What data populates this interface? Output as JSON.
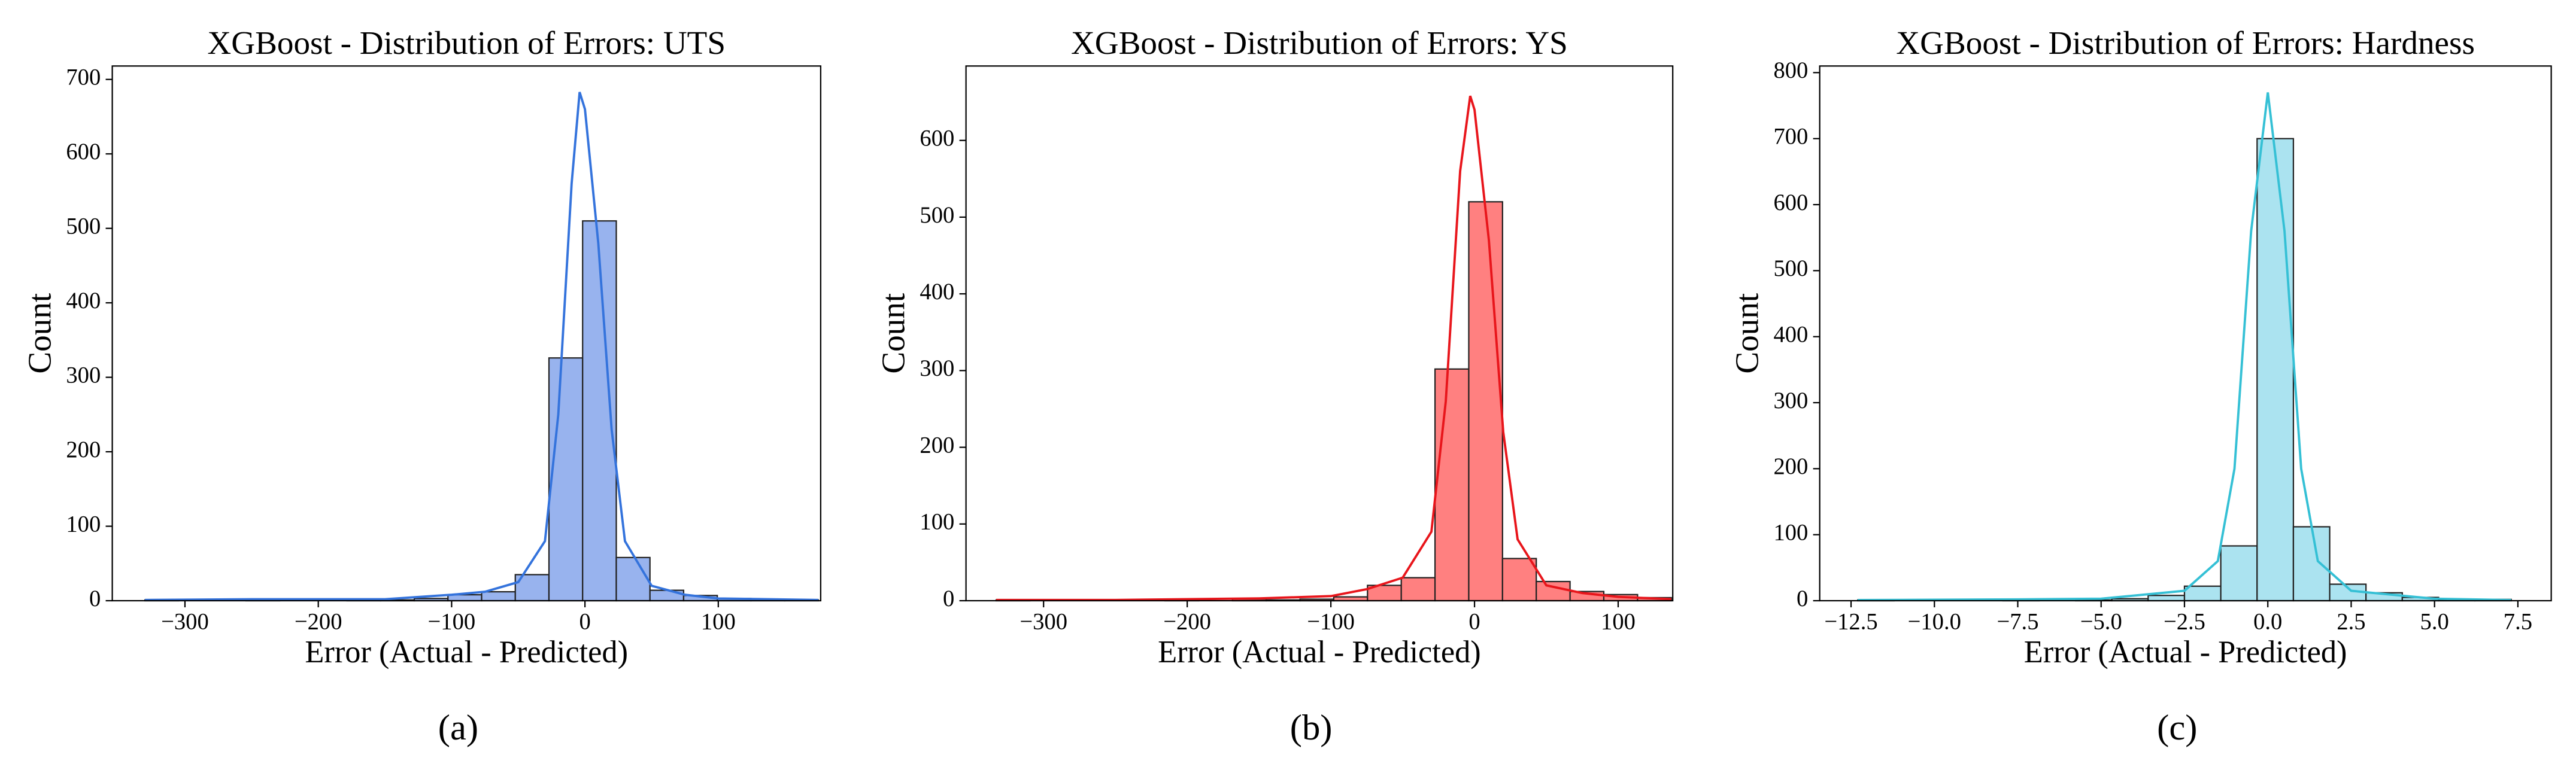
{
  "chart_data": [
    {
      "type": "histogram",
      "title": "XGBoost - Distribution of Errors: UTS",
      "xlabel": "Error (Actual - Predicted)",
      "ylabel": "Count",
      "panel_label": "(a)",
      "color": "#98b3ee",
      "line_color": "#3473dc",
      "bins": [
        -330,
        -304.75,
        -279.5,
        -254.25,
        -229,
        -203.75,
        -178.5,
        -153.25,
        -128,
        -102.75,
        -77.5,
        -52.25,
        -27,
        -1.75,
        23.5,
        48.75,
        74,
        99.25,
        124.5,
        149.75,
        175
      ],
      "values": [
        1,
        0,
        0,
        1,
        0,
        0,
        1,
        1,
        3,
        8,
        12,
        35,
        326,
        510,
        58,
        14,
        7,
        3,
        1,
        1
      ],
      "kde": {
        "x": [
          -330,
          -250,
          -150,
          -100,
          -75,
          -50,
          -30,
          -20,
          -10,
          -4,
          0,
          10,
          20,
          30,
          50,
          75,
          100,
          175
        ],
        "values": [
          1,
          2,
          2,
          8,
          12,
          25,
          80,
          250,
          560,
          683,
          660,
          480,
          230,
          80,
          20,
          8,
          3,
          1
        ]
      },
      "xlim": [
        -354.5,
        176.8
      ],
      "ylim": [
        0,
        718
      ],
      "xticks": [
        {
          "value": -300,
          "label": "−300"
        },
        {
          "value": -200,
          "label": "−200"
        },
        {
          "value": -100,
          "label": "−100"
        },
        0,
        100
      ],
      "yticks": [
        0,
        100,
        200,
        300,
        400,
        500,
        600,
        700
      ]
    },
    {
      "type": "histogram",
      "title": "XGBoost - Distribution of Errors: YS",
      "xlabel": "Error (Actual - Predicted)",
      "ylabel": "Count",
      "panel_label": "(b)",
      "color": "#ff8080",
      "line_color": "#e8151b",
      "bins": [
        -333,
        -309.5,
        -286,
        -262.5,
        -239,
        -215.5,
        -192,
        -168.5,
        -145,
        -121.5,
        -98,
        -74.5,
        -51,
        -27.5,
        -4,
        19.5,
        43,
        66.5,
        90,
        113.5,
        137
      ],
      "values": [
        1,
        0,
        0,
        0,
        0,
        1,
        0,
        2,
        1,
        2,
        5,
        20,
        30,
        302,
        520,
        55,
        25,
        12,
        8,
        4
      ],
      "kde": {
        "x": [
          -333,
          -250,
          -150,
          -100,
          -75,
          -50,
          -30,
          -20,
          -10,
          -3,
          0,
          10,
          20,
          30,
          50,
          75,
          100,
          137
        ],
        "values": [
          1,
          1,
          3,
          6,
          15,
          30,
          90,
          260,
          560,
          658,
          640,
          470,
          220,
          80,
          20,
          10,
          5,
          2
        ]
      },
      "xlim": [
        -354,
        138
      ],
      "ylim": [
        0,
        697
      ],
      "xticks": [
        {
          "value": -300,
          "label": "−300"
        },
        {
          "value": -200,
          "label": "−200"
        },
        {
          "value": -100,
          "label": "−100"
        },
        0,
        100
      ],
      "yticks": [
        0,
        100,
        200,
        300,
        400,
        500,
        600
      ]
    },
    {
      "type": "histogram",
      "title": "XGBoost - Distribution of Errors: Hardness",
      "xlabel": "Error (Actual - Predicted)",
      "ylabel": "Count",
      "panel_label": "(c)",
      "color": "#abe3f0",
      "line_color": "#35c0d5",
      "bins": [
        -12.3,
        -11.211,
        -10.122,
        -9.033,
        -7.944,
        -6.856,
        -5.767,
        -4.678,
        -3.589,
        -2.5,
        -1.411,
        -0.322,
        0.767,
        1.856,
        2.944,
        4.033,
        5.122,
        6.211,
        7.3
      ],
      "values": [
        1,
        0,
        0,
        0,
        1,
        0,
        1,
        3,
        8,
        22,
        83,
        700,
        112,
        25,
        12,
        5,
        1,
        2
      ],
      "kde": {
        "x": [
          -12.3,
          -7.5,
          -5,
          -2.5,
          -1.5,
          -1,
          -0.5,
          0,
          0.5,
          1,
          1.5,
          2.5,
          5,
          7.3
        ],
        "values": [
          1,
          2,
          3,
          15,
          60,
          200,
          560,
          770,
          560,
          200,
          60,
          15,
          3,
          1
        ]
      },
      "xlim": [
        -13.44,
        8.5
      ],
      "ylim": [
        0,
        810
      ],
      "xticks": [
        {
          "value": -12.5,
          "label": "−12.5"
        },
        {
          "value": -10,
          "label": "−10.0"
        },
        {
          "value": -7.5,
          "label": "−7.5"
        },
        {
          "value": -5,
          "label": "−5.0"
        },
        {
          "value": -2.5,
          "label": "−2.5"
        },
        {
          "value": 0,
          "label": "0.0"
        },
        {
          "value": 2.5,
          "label": "2.5"
        },
        {
          "value": 5,
          "label": "5.0"
        },
        {
          "value": 7.5,
          "label": "7.5"
        }
      ],
      "yticks": [
        0,
        100,
        200,
        300,
        400,
        500,
        600,
        700,
        800
      ]
    }
  ]
}
